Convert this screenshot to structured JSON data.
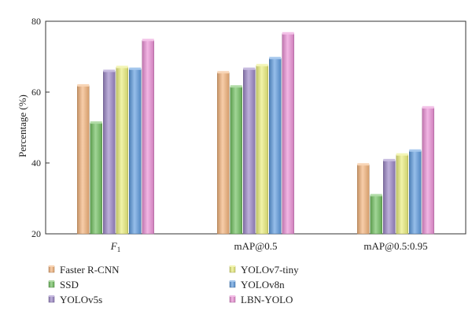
{
  "chart_data": {
    "type": "bar",
    "categories": [
      "F1",
      "mAP@0.5",
      "mAP@0.5:0.95"
    ],
    "category_display": [
      {
        "main": "F",
        "sub": "1",
        "italic": true
      },
      {
        "main": "mAP@0.5",
        "sub": "",
        "italic": false
      },
      {
        "main": "mAP@0.5:0.95",
        "sub": "",
        "italic": false
      }
    ],
    "series": [
      {
        "name": "Faster R-CNN",
        "color": "#f2b27a",
        "values": [
          61.8,
          65.5,
          39.5
        ]
      },
      {
        "name": "SSD",
        "color": "#6fbe5e",
        "values": [
          51.3,
          61.5,
          30.8
        ]
      },
      {
        "name": "YOLOv5s",
        "color": "#9b86c6",
        "values": [
          65.9,
          66.5,
          40.7
        ]
      },
      {
        "name": "YOLOv7-tiny",
        "color": "#e9ec7a",
        "values": [
          67.0,
          67.5,
          42.3
        ]
      },
      {
        "name": "YOLOv8n",
        "color": "#5e9bde",
        "values": [
          66.5,
          69.5,
          43.4
        ]
      },
      {
        "name": "LBN-YOLO",
        "color": "#ea8fd4",
        "values": [
          74.6,
          76.5,
          55.6
        ]
      }
    ],
    "ylabel": "Percentage (%)",
    "xlabel": "",
    "ylim": [
      20,
      80
    ],
    "yticks": [
      20,
      40,
      60,
      80
    ],
    "grid": false,
    "legend_position": "bottom"
  }
}
